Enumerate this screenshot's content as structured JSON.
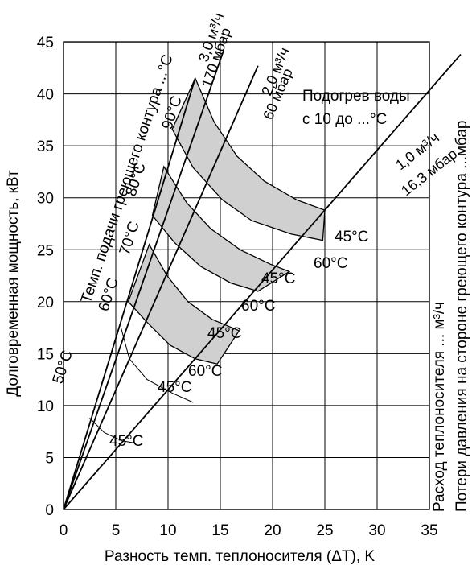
{
  "chart_data": {
    "type": "line",
    "xlabel": "Разность темп. теплоносителя (ΔT), K",
    "ylabel": "Долговременная мощность, кВт",
    "right_label_1": "Расход теплоносителя ... м³/ч",
    "right_label_2": "Потери давления на стороне греющего контура ...мбар",
    "xlim": [
      0,
      35
    ],
    "ylim": [
      0,
      45
    ],
    "x_ticks": [
      "0",
      "5",
      "10",
      "15",
      "20",
      "25",
      "30",
      "35"
    ],
    "y_ticks": [
      "0",
      "5",
      "10",
      "15",
      "20",
      "25",
      "30",
      "35",
      "40",
      "45"
    ],
    "x_tick_values": [
      0,
      5,
      10,
      15,
      20,
      25,
      30,
      35
    ],
    "y_tick_values": [
      0,
      5,
      10,
      15,
      20,
      25,
      30,
      35,
      40,
      45
    ],
    "grid": true,
    "flow_lines": [
      {
        "flow_label": "3,0 м³/ч",
        "pressure_label": "170 мбар",
        "end": [
          12.6,
          41.5
        ]
      },
      {
        "flow_label": "2,0 м³/ч",
        "pressure_label": "60 мбар",
        "end": [
          18.6,
          42.7
        ]
      },
      {
        "flow_label": "1,0 м³/ч",
        "pressure_label": "16,3 мбар",
        "end": [
          38.0,
          43.8
        ]
      }
    ],
    "supply_temp_title": "Темп. подачи греющего контура ...°C",
    "heating_title_line1": "Подогрев воды",
    "heating_title_line2": "с 10 до ...°C",
    "bands": [
      {
        "supply": "90°C",
        "upper": [
          [
            12.6,
            41.5
          ],
          [
            14.4,
            37.3
          ],
          [
            16.6,
            34.0
          ],
          [
            19.2,
            31.6
          ],
          [
            22.3,
            29.8
          ],
          [
            25.0,
            28.8
          ]
        ],
        "lower": [
          [
            10.4,
            36.6
          ],
          [
            12.4,
            32.9
          ],
          [
            15.2,
            29.8
          ],
          [
            18.0,
            27.8
          ],
          [
            21.8,
            26.5
          ],
          [
            24.8,
            25.9
          ]
        ],
        "label_high": "45°C",
        "label_low": "60°C"
      },
      {
        "supply": "80°C",
        "upper": [
          [
            9.6,
            33.0
          ],
          [
            11.8,
            29.5
          ],
          [
            14.1,
            27.0
          ],
          [
            16.9,
            25.0
          ],
          [
            19.8,
            23.6
          ],
          [
            21.6,
            22.9
          ]
        ],
        "lower": [
          [
            8.5,
            28.3
          ],
          [
            10.6,
            25.7
          ],
          [
            13.1,
            23.4
          ],
          [
            16.0,
            21.8
          ],
          [
            18.6,
            21.0
          ]
        ],
        "label_high": "45°C",
        "label_low": "60°C"
      },
      {
        "supply": "70°C",
        "upper": [
          [
            8.2,
            25.5
          ],
          [
            9.9,
            22.5
          ],
          [
            11.9,
            20.0
          ],
          [
            14.2,
            18.3
          ],
          [
            16.8,
            17.2
          ]
        ],
        "lower": [
          [
            6.2,
            20.0
          ],
          [
            8.0,
            18.0
          ],
          [
            10.2,
            15.8
          ],
          [
            12.6,
            14.5
          ],
          [
            14.7,
            14.0
          ]
        ],
        "label_high": "45°C",
        "label_low": "60°C"
      }
    ],
    "thin_curves": [
      {
        "supply": "60°C",
        "points": [
          [
            5.5,
            17.5
          ],
          [
            6.3,
            14.5
          ],
          [
            8.0,
            12.5
          ],
          [
            10.4,
            11.2
          ],
          [
            12.4,
            10.3
          ]
        ],
        "label": "45°C"
      },
      {
        "supply": "50°C",
        "points": [
          [
            2.5,
            8.8
          ],
          [
            3.9,
            7.4
          ],
          [
            5.6,
            6.6
          ],
          [
            6.8,
            6.4
          ]
        ],
        "label": "45°C"
      }
    ],
    "supply_labels": [
      "90°C",
      "80°C",
      "70°C",
      "60°C",
      "50°C"
    ]
  }
}
